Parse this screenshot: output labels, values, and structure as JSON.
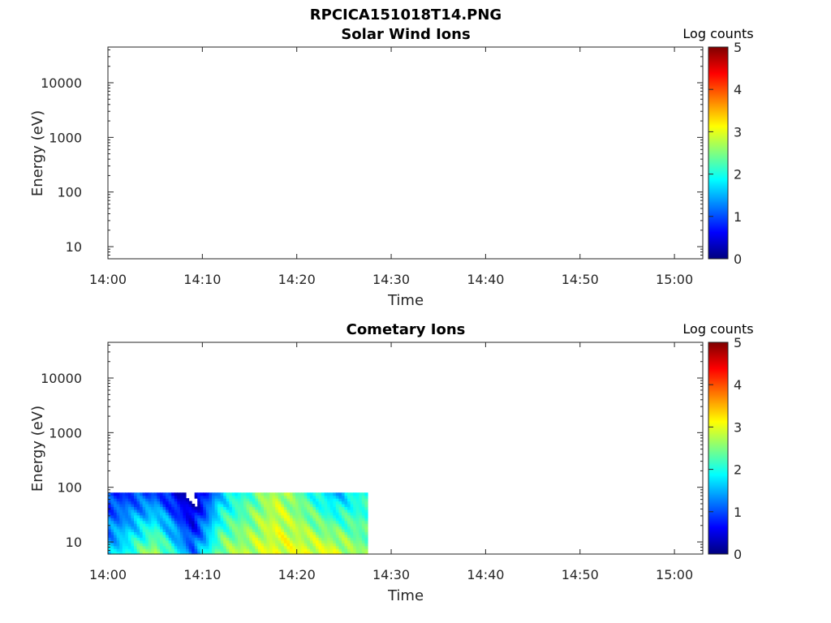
{
  "figure_title": "RPCICA151018T14.PNG",
  "colorbar": {
    "label": "Log counts",
    "ticks": [
      "0",
      "1",
      "2",
      "3",
      "4",
      "5"
    ],
    "colormap": "jet"
  },
  "chart_data": [
    {
      "type": "heatmap",
      "title": "Solar Wind Ions",
      "xlabel": "Time",
      "ylabel": "Energy (eV)",
      "x_ticks": [
        "14:00",
        "14:10",
        "14:20",
        "14:30",
        "14:40",
        "14:50",
        "15:00"
      ],
      "y_ticks": [
        "10",
        "100",
        "1000",
        "10000"
      ],
      "y_scale": "log",
      "ylim": [
        6,
        45000
      ],
      "xlim": [
        "14:00",
        "15:03"
      ],
      "clim": [
        0,
        5
      ],
      "data": []
    },
    {
      "type": "heatmap",
      "title": "Cometary Ions",
      "xlabel": "Time",
      "ylabel": "Energy (eV)",
      "x_ticks": [
        "14:00",
        "14:10",
        "14:20",
        "14:30",
        "14:40",
        "14:50",
        "15:00"
      ],
      "y_ticks": [
        "10",
        "100",
        "1000",
        "10000"
      ],
      "y_scale": "log",
      "ylim": [
        6,
        45000
      ],
      "xlim": [
        "14:00",
        "15:03"
      ],
      "clim": [
        0,
        5
      ],
      "data_time_range": [
        "14:00",
        "14:27.5"
      ],
      "data_energy_range": [
        6,
        80
      ],
      "data": [
        {
          "time": "14:00",
          "log_counts_low_energy": 1.5,
          "log_counts_high_energy": 0.8
        },
        {
          "time": "14:05",
          "log_counts_low_energy": 2.8,
          "log_counts_high_energy": 1.0
        },
        {
          "time": "14:09",
          "log_counts_low_energy": 1.2,
          "log_counts_high_energy": 0.0
        },
        {
          "time": "14:12",
          "log_counts_low_energy": 2.6,
          "log_counts_high_energy": 1.6
        },
        {
          "time": "14:18",
          "log_counts_low_energy": 3.0,
          "log_counts_high_energy": 2.8
        },
        {
          "time": "14:24",
          "log_counts_low_energy": 3.0,
          "log_counts_high_energy": 1.5
        },
        {
          "time": "14:27",
          "log_counts_low_energy": 2.5,
          "log_counts_high_energy": 2.0
        }
      ]
    }
  ]
}
